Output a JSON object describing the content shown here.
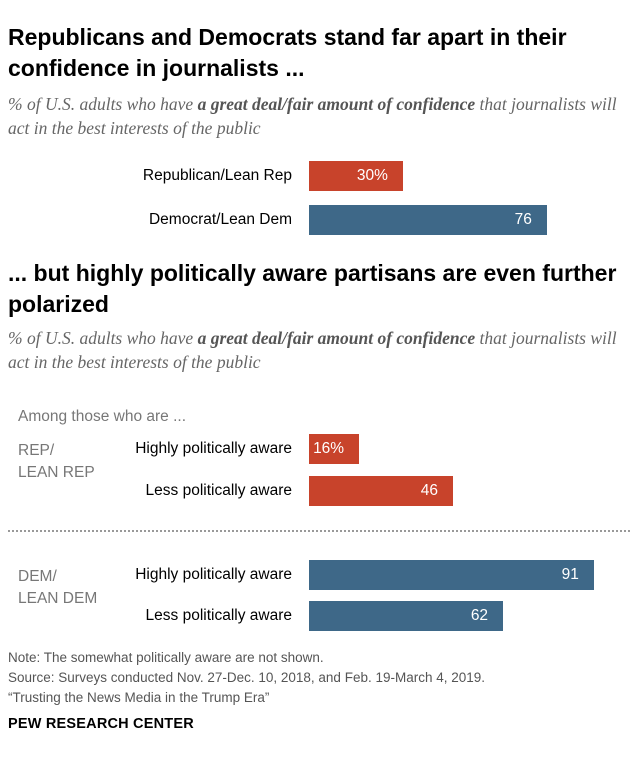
{
  "chart_data": [
    {
      "type": "bar",
      "orientation": "horizontal",
      "title": "Republicans and Democrats stand far apart in their confidence in journalists ...",
      "subtitle": {
        "prefix": "% of U.S. adults who have ",
        "emphasis": "a great deal/fair amount of confidence",
        "suffix": " that journalists will act in the best interests of the public"
      },
      "categories": [
        "Republican/Lean Rep",
        "Democrat/Lean Dem"
      ],
      "values": [
        30,
        76
      ],
      "value_labels": [
        "30%",
        "76"
      ],
      "colors": [
        "#c8432b",
        "#3e6888"
      ],
      "xlim": [
        0,
        100
      ]
    },
    {
      "type": "bar",
      "orientation": "horizontal",
      "title": "... but highly politically aware partisans are even further polarized",
      "subtitle": {
        "prefix": "% of U.S. adults who have ",
        "emphasis": "a great deal/fair amount of confidence",
        "suffix": " that journalists will act in the best interests of the public"
      },
      "intro": "Among those who are ...",
      "groups": [
        {
          "label": "REP/ LEAN REP",
          "label_lines": [
            "REP/",
            "LEAN REP"
          ],
          "color": "#c8432b",
          "categories": [
            "Highly politically aware",
            "Less politically aware"
          ],
          "values": [
            16,
            46
          ],
          "value_labels": [
            "16%",
            "46"
          ]
        },
        {
          "label": "DEM/ LEAN DEM",
          "label_lines": [
            "DEM/",
            "LEAN DEM"
          ],
          "color": "#3e6888",
          "categories": [
            "Highly politically aware",
            "Less politically aware"
          ],
          "values": [
            91,
            62
          ],
          "value_labels": [
            "91",
            "62"
          ]
        }
      ],
      "xlim": [
        0,
        100
      ]
    }
  ],
  "footer": {
    "note": "Note: The somewhat politically aware are not shown.",
    "source": "Source: Surveys conducted Nov. 27-Dec. 10, 2018, and Feb. 19-March 4, 2019.",
    "report": "“Trusting the News Media in the Trump Era”",
    "brand": "PEW RESEARCH CENTER"
  }
}
